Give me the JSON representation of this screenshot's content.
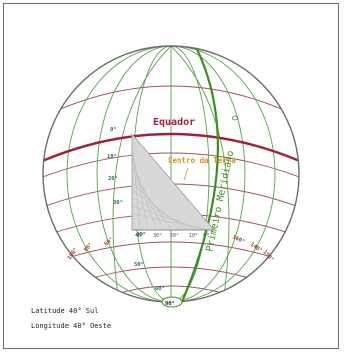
{
  "labels": {
    "equator": "Equador",
    "prime_meridian": "Primeiro Meridiano",
    "earth_center": "Centro da Terra",
    "latitude_line": "Latitude 40° Sul",
    "longitude_line": "Longitude 40° Oeste",
    "lon_zero_mark": "0°",
    "lat_ticks": [
      "0°",
      "10°",
      "20°",
      "30°",
      "40°",
      "50°",
      "60°",
      "90°"
    ],
    "lon_ticks_west": [
      "100°",
      "80°",
      "60°",
      "40°",
      "30°",
      "20°",
      "10°"
    ],
    "lon_ticks_east": [
      "160°",
      "140°",
      "150°"
    ]
  },
  "colors": {
    "background": "#ffffff",
    "frame": "#6f6f6f",
    "globe_outline": "#6b6b6b",
    "parallels": "#a05060",
    "meridians": "#5aa050",
    "equator": "#a0203a",
    "prime_meridian": "#3b8f20",
    "center_label": "#e08a20",
    "lat_tick_color": "#1f6b5a",
    "lon_tick_color": "#a04030",
    "wedge": "#bdbdbd"
  }
}
